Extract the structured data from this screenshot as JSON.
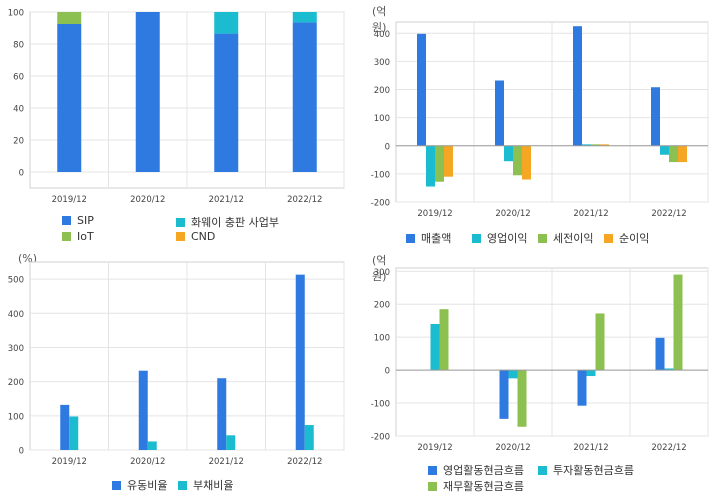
{
  "colors": {
    "blue": "#2f7ae0",
    "cyan": "#1cbcd0",
    "green": "#8cc152",
    "orange": "#f5a623",
    "grid": "#e4e4e4",
    "axis": "#9a9a9a",
    "frame": "#d2d2d2"
  },
  "chart_data": [
    {
      "id": "segment",
      "type": "bar",
      "stacked": true,
      "unit": "",
      "categories": [
        "2019/12",
        "2020/12",
        "2021/12",
        "2022/12"
      ],
      "ylim": [
        -10,
        100
      ],
      "yticks": [
        0,
        20,
        40,
        60,
        80,
        100
      ],
      "series": [
        {
          "name": "SIP",
          "color": "#2f7ae0",
          "values": [
            92.5,
            100,
            86.5,
            93.5
          ]
        },
        {
          "name": "화웨이 충판 사업부",
          "color": "#1cbcd0",
          "values": [
            0,
            0,
            13.5,
            6.5
          ]
        },
        {
          "name": "IoT",
          "color": "#8cc152",
          "values": [
            7.5,
            0,
            0,
            0
          ]
        },
        {
          "name": "CND",
          "color": "#f5a623",
          "values": [
            0,
            0,
            0,
            0
          ]
        }
      ]
    },
    {
      "id": "income",
      "type": "bar",
      "unit": "(억원)",
      "categories": [
        "2019/12",
        "2020/12",
        "2021/12",
        "2022/12"
      ],
      "ylim": [
        -200,
        440
      ],
      "yticks": [
        -200,
        -100,
        0,
        100,
        200,
        300,
        400
      ],
      "series": [
        {
          "name": "매출액",
          "color": "#2f7ae0",
          "values": [
            398,
            232,
            425,
            208
          ]
        },
        {
          "name": "영업이익",
          "color": "#1cbcd0",
          "values": [
            -145,
            -55,
            5,
            -32
          ]
        },
        {
          "name": "세전이익",
          "color": "#8cc152",
          "values": [
            -128,
            -105,
            5,
            -58
          ]
        },
        {
          "name": "순이익",
          "color": "#f5a623",
          "values": [
            -110,
            -120,
            5,
            -58
          ]
        }
      ]
    },
    {
      "id": "ratio",
      "type": "bar",
      "unit": "(%)",
      "categories": [
        "2019/12",
        "2020/12",
        "2021/12",
        "2022/12"
      ],
      "ylim": [
        0,
        550
      ],
      "yticks": [
        0,
        100,
        200,
        300,
        400,
        500
      ],
      "series": [
        {
          "name": "유동비율",
          "color": "#2f7ae0",
          "values": [
            132,
            232,
            210,
            513
          ]
        },
        {
          "name": "부채비율",
          "color": "#1cbcd0",
          "values": [
            98,
            25,
            43,
            73
          ]
        }
      ]
    },
    {
      "id": "cashflow",
      "type": "bar",
      "unit": "(억원)",
      "categories": [
        "2019/12",
        "2020/12",
        "2021/12",
        "2022/12"
      ],
      "ylim": [
        -200,
        310
      ],
      "yticks": [
        -200,
        -100,
        0,
        100,
        200,
        300
      ],
      "series": [
        {
          "name": "영업활동현금흐름",
          "color": "#2f7ae0",
          "values": [
            0,
            -148,
            -108,
            98
          ]
        },
        {
          "name": "투자활동현금흐름",
          "color": "#1cbcd0",
          "values": [
            140,
            -25,
            -18,
            5
          ]
        },
        {
          "name": "재무활동현금흐름",
          "color": "#8cc152",
          "values": [
            185,
            -172,
            172,
            290
          ]
        }
      ]
    }
  ]
}
